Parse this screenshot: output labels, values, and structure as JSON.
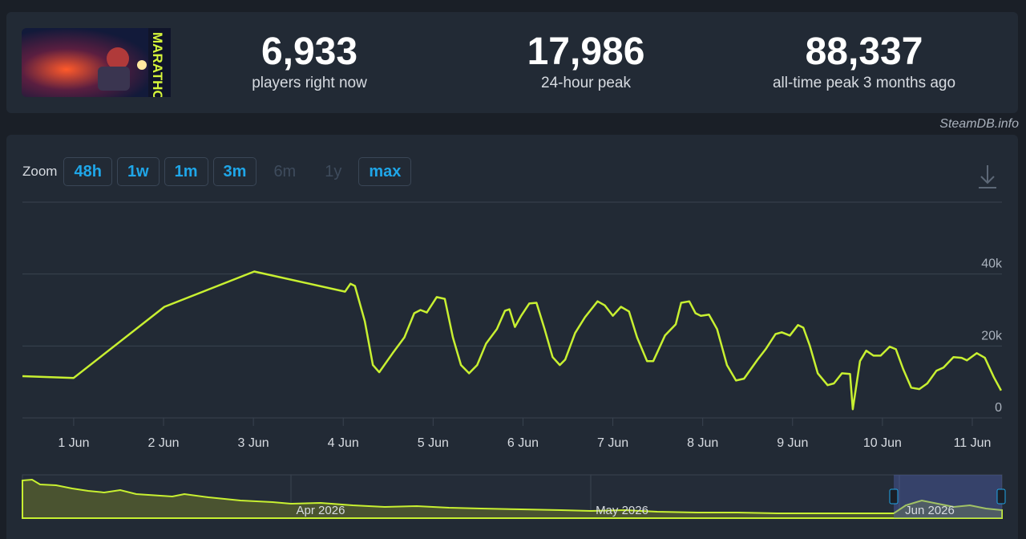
{
  "stats": [
    {
      "value": "6,933",
      "label": "players right now"
    },
    {
      "value": "17,986",
      "label": "24-hour peak"
    },
    {
      "value": "88,337",
      "label": "all-time peak 3 months ago"
    }
  ],
  "thumbnail_text": "MARATHON",
  "credit": "SteamDB.info",
  "zoom": {
    "label": "Zoom",
    "buttons": [
      {
        "label": "48h",
        "enabled": true
      },
      {
        "label": "1w",
        "enabled": true
      },
      {
        "label": "1m",
        "enabled": true
      },
      {
        "label": "3m",
        "enabled": true
      },
      {
        "label": "6m",
        "enabled": false
      },
      {
        "label": "1y",
        "enabled": false
      },
      {
        "label": "max",
        "enabled": true
      }
    ]
  },
  "navigator_labels": [
    "Apr 2026",
    "May 2026",
    "Jun 2026"
  ],
  "chart_data": {
    "type": "line",
    "color": "#c8f031",
    "grid": true,
    "xlim": [
      0.43,
      11.33
    ],
    "ylim": [
      0,
      60000
    ],
    "xticks": [
      {
        "value": 1,
        "label": "1 Jun"
      },
      {
        "value": 2,
        "label": "2 Jun"
      },
      {
        "value": 3,
        "label": "3 Jun"
      },
      {
        "value": 4,
        "label": "4 Jun"
      },
      {
        "value": 5,
        "label": "5 Jun"
      },
      {
        "value": 6,
        "label": "6 Jun"
      },
      {
        "value": 7,
        "label": "7 Jun"
      },
      {
        "value": 8,
        "label": "8 Jun"
      },
      {
        "value": 9,
        "label": "9 Jun"
      },
      {
        "value": 10,
        "label": "10 Jun"
      },
      {
        "value": 11,
        "label": "11 Jun"
      }
    ],
    "yticks": [
      0,
      {
        "value": 20000,
        "label": "20k"
      },
      {
        "value": 40000,
        "label": "40k"
      }
    ],
    "x": [
      0.43,
      1.0,
      2.01,
      3.01,
      4.02,
      4.08,
      4.13,
      4.24,
      4.33,
      4.4,
      4.55,
      4.68,
      4.79,
      4.86,
      4.93,
      5.04,
      5.13,
      5.22,
      5.31,
      5.4,
      5.49,
      5.59,
      5.71,
      5.8,
      5.85,
      5.91,
      5.98,
      6.07,
      6.15,
      6.24,
      6.33,
      6.41,
      6.47,
      6.58,
      6.69,
      6.83,
      6.91,
      7.0,
      7.09,
      7.18,
      7.27,
      7.38,
      7.45,
      7.58,
      7.7,
      7.76,
      7.85,
      7.92,
      7.98,
      8.07,
      8.16,
      8.27,
      8.37,
      8.46,
      8.61,
      8.7,
      8.81,
      8.88,
      8.97,
      9.06,
      9.12,
      9.19,
      9.28,
      9.39,
      9.46,
      9.55,
      9.64,
      9.67,
      9.75,
      9.82,
      9.9,
      9.98,
      10.08,
      10.15,
      10.23,
      10.32,
      10.41,
      10.5,
      10.6,
      10.68,
      10.79,
      10.88,
      10.94,
      11.05,
      11.14,
      11.24,
      11.32
    ],
    "values": [
      11600,
      11100,
      30900,
      40700,
      35100,
      37300,
      36700,
      26900,
      14700,
      12700,
      18000,
      22400,
      29100,
      30000,
      29300,
      33600,
      33100,
      22400,
      14700,
      12400,
      14700,
      20700,
      24700,
      29800,
      30200,
      25300,
      28400,
      31800,
      32000,
      24700,
      16900,
      14700,
      16200,
      23600,
      28000,
      32400,
      31300,
      28400,
      30900,
      29600,
      22400,
      15800,
      15800,
      22900,
      26000,
      32000,
      32400,
      29100,
      28400,
      28700,
      24700,
      14700,
      10400,
      10900,
      16200,
      19100,
      23300,
      23800,
      22900,
      25800,
      25100,
      20200,
      12400,
      9100,
      9600,
      12400,
      12200,
      2400,
      15800,
      18700,
      17300,
      17300,
      19800,
      19100,
      13600,
      8400,
      8000,
      9600,
      13100,
      14000,
      16900,
      16700,
      16000,
      18000,
      16700,
      11300,
      7600
    ]
  }
}
